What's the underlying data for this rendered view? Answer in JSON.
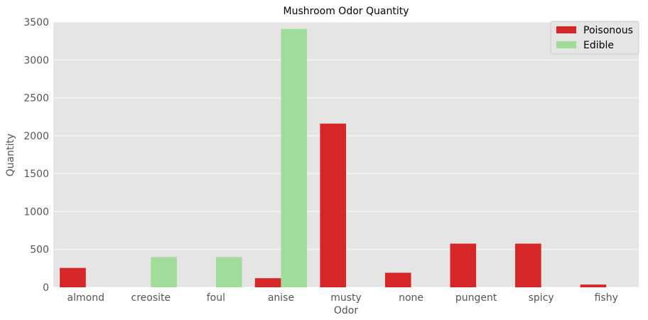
{
  "chart_data": {
    "type": "bar",
    "title": "Mushroom Odor Quantity",
    "xlabel": "Odor",
    "ylabel": "Quantity",
    "categories": [
      "almond",
      "creosite",
      "foul",
      "anise",
      "musty",
      "none",
      "pungent",
      "spicy",
      "fishy"
    ],
    "series": [
      {
        "name": "Poisonous",
        "color": "#d62728",
        "values": [
          256,
          0,
          0,
          120,
          2160,
          192,
          576,
          576,
          36
        ]
      },
      {
        "name": "Edible",
        "color": "#a1dc9a",
        "values": [
          0,
          400,
          400,
          3408,
          0,
          0,
          0,
          0,
          0
        ]
      }
    ],
    "ylim": [
      0,
      3500
    ],
    "yticks": [
      0,
      500,
      1000,
      1500,
      2000,
      2500,
      3000,
      3500
    ],
    "grid": true,
    "legend_position": "top-right",
    "background_color": "#e5e5e5",
    "grid_color": "#ffffff"
  }
}
